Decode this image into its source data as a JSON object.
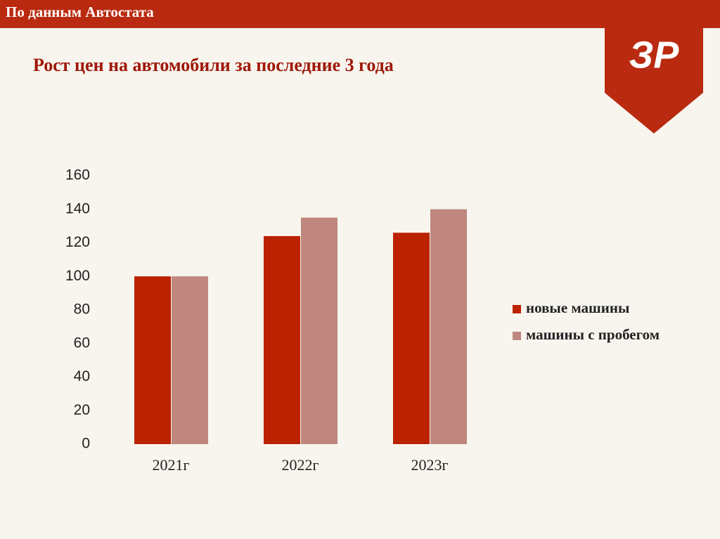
{
  "header": "По данным Автостата",
  "logo": "ЗР",
  "chart_data": {
    "type": "bar",
    "title": "Рост цен на автомобили за последние 3 года",
    "categories": [
      "2021г",
      "2022г",
      "2023г"
    ],
    "series": [
      {
        "name": "новые машины",
        "color": "#bb2200",
        "values": [
          100,
          124,
          126
        ]
      },
      {
        "name": "машины с пробегом",
        "color": "#bf877e",
        "values": [
          100,
          135,
          140
        ]
      }
    ],
    "ylim": [
      0,
      160
    ],
    "yticks": [
      0,
      20,
      40,
      60,
      80,
      100,
      120,
      140,
      160
    ],
    "legend": "right"
  }
}
